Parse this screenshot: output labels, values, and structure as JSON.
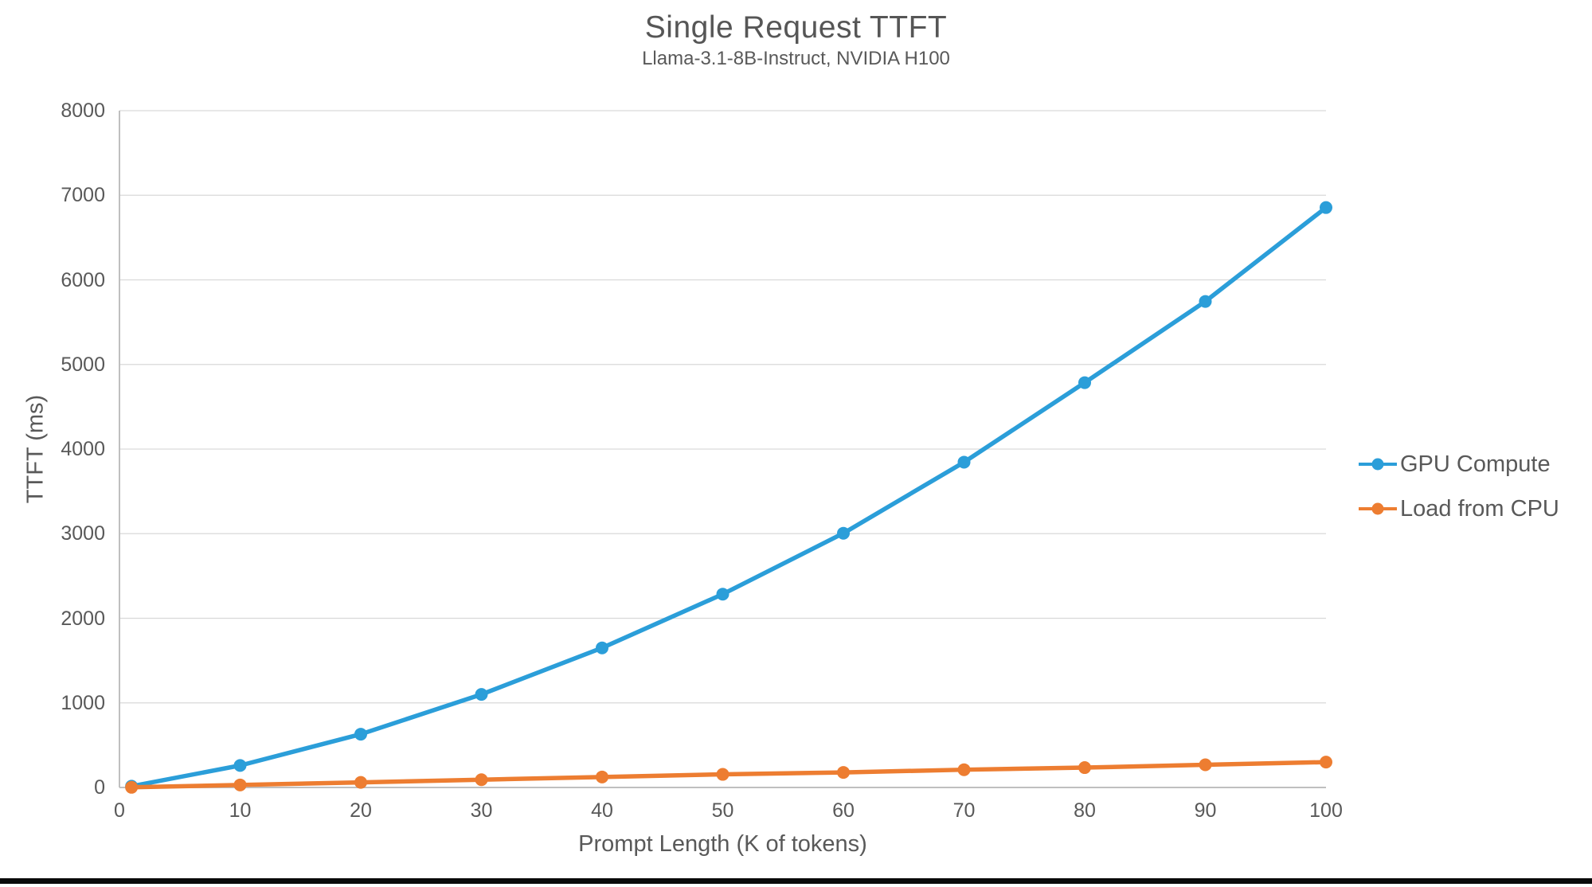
{
  "title": "Single Request TTFT",
  "subtitle": "Llama-3.1-8B-Instruct, NVIDIA H100",
  "colors": {
    "gridline": "#D9D9D9",
    "axis_line": "#BFBFBF",
    "text": "#595959",
    "title_text": "#565656",
    "background": "#FFFFFF",
    "bottom_bar": "#0A0A0A",
    "series_blue": "#2B9ED9",
    "series_orange": "#ED7D31"
  },
  "chart_data": {
    "type": "line",
    "title": "Single Request TTFT",
    "subtitle": "Llama-3.1-8B-Instruct, NVIDIA H100",
    "xlabel": "Prompt Length (K of tokens)",
    "ylabel": "TTFT (ms)",
    "xlim": [
      0,
      100
    ],
    "ylim": [
      0,
      8000
    ],
    "x_ticks": [
      0,
      10,
      20,
      30,
      40,
      50,
      60,
      70,
      80,
      90,
      100
    ],
    "y_ticks": [
      0,
      1000,
      2000,
      3000,
      4000,
      5000,
      6000,
      7000,
      8000
    ],
    "grid": "horizontal",
    "legend_position": "right",
    "marker": "circle",
    "x": [
      1,
      10,
      20,
      30,
      40,
      50,
      60,
      70,
      80,
      90,
      100
    ],
    "series": [
      {
        "name": "GPU Compute",
        "color": "#2B9ED9",
        "values": [
          15,
          260,
          630,
          1100,
          1650,
          2285,
          3005,
          3845,
          4785,
          5745,
          6855
        ]
      },
      {
        "name": "Load from CPU",
        "color": "#ED7D31",
        "values": [
          2,
          30,
          60,
          92,
          124,
          155,
          178,
          210,
          235,
          268,
          300
        ]
      }
    ]
  },
  "legend": {
    "items": [
      {
        "label": "GPU Compute"
      },
      {
        "label": "Load from CPU"
      }
    ]
  }
}
